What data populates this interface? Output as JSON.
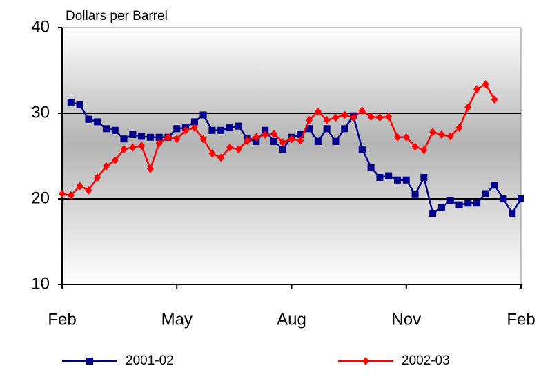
{
  "chart_data": {
    "type": "line",
    "y_label": "Dollars per Barrel",
    "categories": [
      "Feb",
      null,
      null,
      null,
      null,
      null,
      null,
      null,
      null,
      null,
      null,
      null,
      null,
      "May",
      null,
      null,
      null,
      null,
      null,
      null,
      null,
      null,
      null,
      null,
      null,
      null,
      "Aug",
      null,
      null,
      null,
      null,
      null,
      null,
      null,
      null,
      null,
      null,
      null,
      null,
      "Nov",
      null,
      null,
      null,
      null,
      null,
      null,
      null,
      null,
      null,
      null,
      null,
      null,
      "Feb"
    ],
    "series": [
      {
        "name": "2001-02",
        "color": "#00008b",
        "marker": "square",
        "values": [
          null,
          31.3,
          31.0,
          29.3,
          29.0,
          28.2,
          28.0,
          27.0,
          27.5,
          27.3,
          27.2,
          27.2,
          27.2,
          28.2,
          28.3,
          29.0,
          29.8,
          28.0,
          28.0,
          28.3,
          28.5,
          27.0,
          26.7,
          28.0,
          26.7,
          25.8,
          27.2,
          27.5,
          28.2,
          26.7,
          28.2,
          26.7,
          28.2,
          29.7,
          25.8,
          23.7,
          22.5,
          22.7,
          22.2,
          22.2,
          20.5,
          22.5,
          18.3,
          19.0,
          19.8,
          19.3,
          19.5,
          19.5,
          20.6,
          21.6,
          20.0,
          18.3,
          20.0
        ]
      },
      {
        "name": "2002-03",
        "color": "#ff0000",
        "marker": "diamond",
        "values": [
          20.6,
          20.4,
          21.5,
          21.0,
          22.5,
          23.8,
          24.5,
          25.8,
          26.0,
          26.2,
          23.5,
          26.5,
          27.2,
          27.0,
          28.0,
          28.3,
          27.0,
          25.3,
          24.8,
          26.0,
          25.8,
          26.8,
          27.2,
          27.5,
          27.6,
          26.6,
          27.0,
          26.8,
          29.2,
          30.2,
          29.2,
          29.5,
          29.8,
          29.5,
          30.3,
          29.6,
          29.5,
          29.6,
          27.2,
          27.2,
          26.1,
          25.7,
          27.8,
          27.5,
          27.3,
          28.3,
          30.7,
          32.8,
          33.4,
          31.6,
          null,
          null,
          null
        ]
      }
    ],
    "ylim": [
      10,
      40
    ],
    "yticks": [
      10,
      20,
      30,
      40
    ],
    "grid": true,
    "legend": "bottom"
  }
}
